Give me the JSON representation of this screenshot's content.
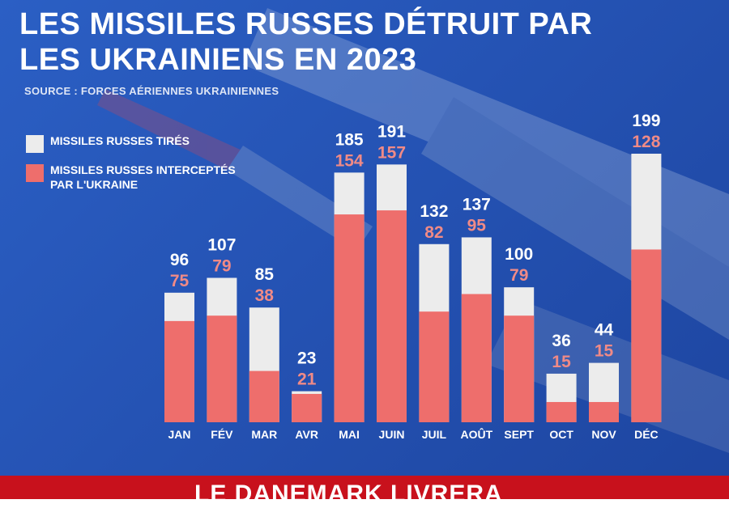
{
  "title": "LES MISSILES RUSSES DÉTRUIT PAR LES UKRAINIENS EN 2023",
  "source": "SOURCE : FORCES AÉRIENNES UKRAINIENNES",
  "legend": {
    "fired": "MISSILES RUSSES TIRÉS",
    "intercepted": "MISSILES RUSSES INTERCEPTÉS PAR L'UKRAINE"
  },
  "colors": {
    "background": "#2553b4",
    "fired": "#ececec",
    "intercepted": "#ee6e6c",
    "fired_label": "#ffffff",
    "intercepted_label": "#f08a86",
    "ticker_bar": "#c8111c"
  },
  "ticker": "LE DANEMARK LIVRERA",
  "chart_data": {
    "type": "bar",
    "stacked": "overlay",
    "categories": [
      "JAN",
      "FÉV",
      "MAR",
      "AVR",
      "MAI",
      "JUIN",
      "JUIL",
      "AOÛT",
      "SEPT",
      "OCT",
      "NOV",
      "DÉC"
    ],
    "series": [
      {
        "name": "MISSILES RUSSES TIRÉS",
        "values": [
          96,
          107,
          85,
          23,
          185,
          191,
          132,
          137,
          100,
          36,
          44,
          199
        ]
      },
      {
        "name": "MISSILES RUSSES INTERCEPTÉS PAR L'UKRAINE",
        "values": [
          75,
          79,
          38,
          21,
          154,
          157,
          82,
          95,
          79,
          15,
          15,
          128
        ]
      }
    ],
    "title": "LES MISSILES RUSSES DÉTRUIT PAR LES UKRAINIENS EN 2023",
    "xlabel": "",
    "ylabel": "",
    "grid": false,
    "legend_position": "top-left",
    "data_labels": true
  }
}
